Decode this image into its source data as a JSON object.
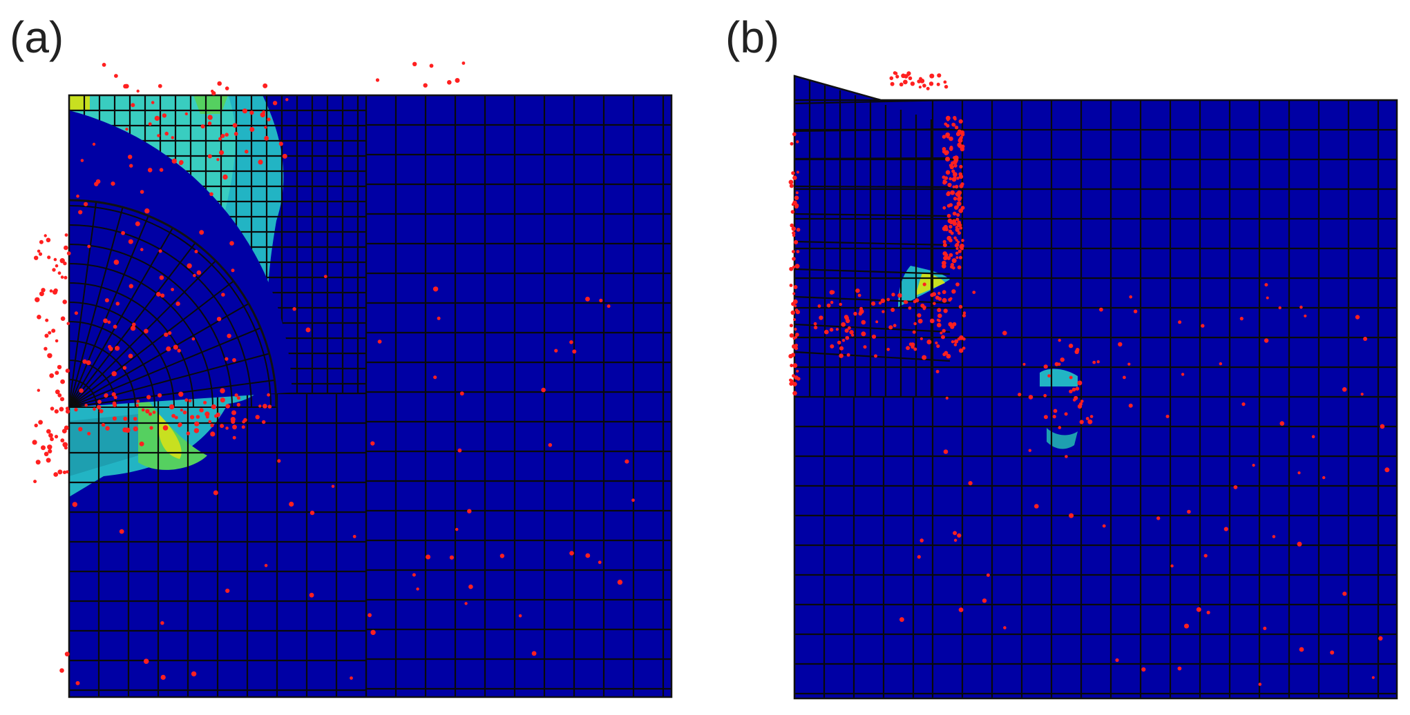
{
  "panels": [
    {
      "label": "(a)"
    },
    {
      "label": "(b)"
    }
  ],
  "colors": {
    "background_mesh": "#0000a4",
    "grid_line": "#0a0a0a",
    "contour_cyan": "#22b4c4",
    "contour_teal": "#1e9fb0",
    "contour_light": "#3ccfc0",
    "contour_green": "#55d060",
    "contour_yellow": "#c8e020",
    "particle": "#ff2020"
  }
}
